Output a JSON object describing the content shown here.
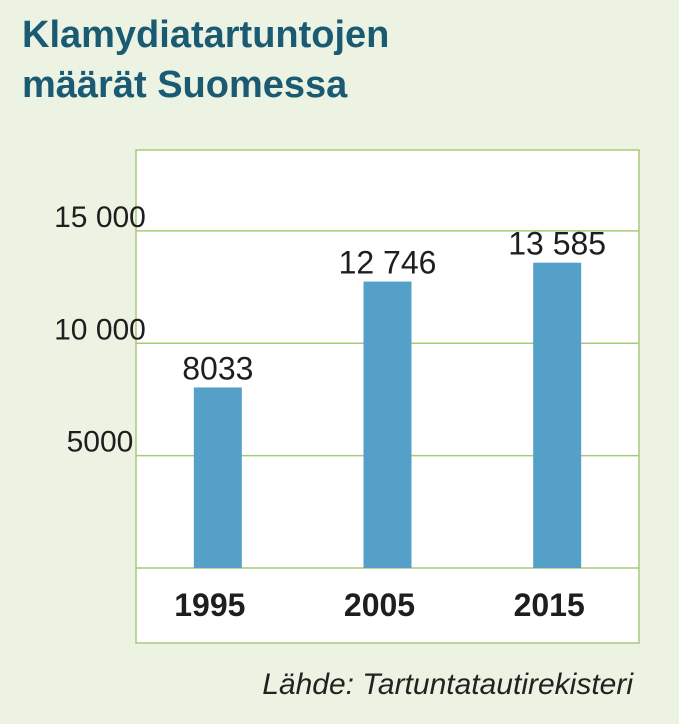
{
  "title_lines": [
    "Klamydiatartuntojen",
    "määrät Suomessa"
  ],
  "source": "Lähde: Tartuntatautirekisteri",
  "colors": {
    "title": "#1a5b73",
    "bar": "#55a0c9",
    "grid": "#a9c97a",
    "background": "#edf3e2",
    "plot_background": "#ffffff"
  },
  "chart_data": {
    "type": "bar",
    "title": "Klamydiatartuntojen määrät Suomessa",
    "categories": [
      "1995",
      "2005",
      "2015"
    ],
    "values": [
      8033,
      12746,
      13585
    ],
    "value_labels": [
      "8033",
      "12 746",
      "13 585"
    ],
    "y_ticks": [
      5000,
      10000,
      15000
    ],
    "y_tick_labels": [
      "5000",
      "10 000",
      "15 000"
    ],
    "ylim": [
      0,
      18600
    ],
    "grid": true,
    "legend": "none"
  }
}
